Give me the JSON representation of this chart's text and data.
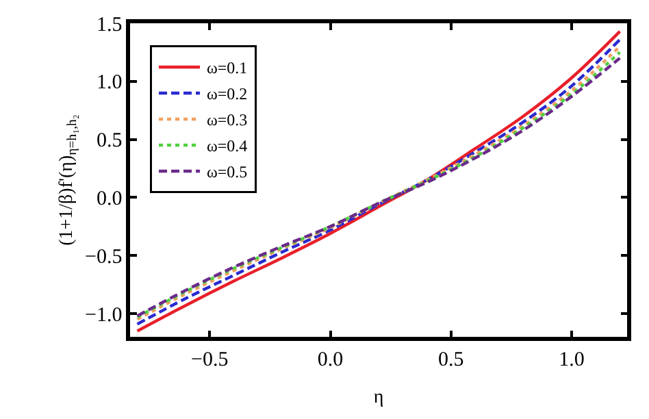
{
  "chart_data": {
    "type": "line",
    "xlabel": "η",
    "ylabel": "(1+1/β)f'(η)$_{η=h₁,h₂}$",
    "x": [
      -0.8,
      -0.6,
      -0.4,
      -0.2,
      0.0,
      0.2,
      0.4,
      0.6,
      0.8,
      1.0,
      1.2
    ],
    "series": [
      {
        "name": "ω=0.1",
        "color": "#e8202a",
        "line_style": "solid",
        "values": [
          -1.15,
          -0.93,
          -0.72,
          -0.52,
          -0.31,
          -0.08,
          0.15,
          0.42,
          0.7,
          1.03,
          1.43
        ]
      },
      {
        "name": "ω=0.2",
        "color": "#2a2ad0",
        "line_style": "dashed",
        "values": [
          -1.09,
          -0.87,
          -0.67,
          -0.47,
          -0.28,
          -0.06,
          0.15,
          0.39,
          0.65,
          0.96,
          1.36
        ]
      },
      {
        "name": "ω=0.3",
        "color": "#f0a060",
        "line_style": "dotted",
        "values": [
          -1.05,
          -0.83,
          -0.63,
          -0.44,
          -0.26,
          -0.05,
          0.15,
          0.37,
          0.62,
          0.92,
          1.3
        ]
      },
      {
        "name": "ω=0.4",
        "color": "#50d040",
        "line_style": "dotted",
        "values": [
          -1.03,
          -0.81,
          -0.61,
          -0.43,
          -0.25,
          -0.05,
          0.14,
          0.35,
          0.6,
          0.89,
          1.25
        ]
      },
      {
        "name": "ω=0.5",
        "color": "#6a2a8a",
        "line_style": "dashed",
        "values": [
          -1.02,
          -0.8,
          -0.6,
          -0.42,
          -0.25,
          -0.05,
          0.13,
          0.34,
          0.58,
          0.87,
          1.2
        ]
      }
    ],
    "xlim": [
      -0.83,
      1.23
    ],
    "ylim": [
      -1.2,
      1.5
    ],
    "xticks": [
      {
        "value": -0.5,
        "label": "−0.5"
      },
      {
        "value": 0.0,
        "label": "0.0"
      },
      {
        "value": 0.5,
        "label": "0.5"
      },
      {
        "value": 1.0,
        "label": "1.0"
      }
    ],
    "yticks": [
      {
        "value": -1.0,
        "label": "−1.0"
      },
      {
        "value": -0.5,
        "label": "−0.5"
      },
      {
        "value": 0.0,
        "label": "0.0"
      },
      {
        "value": 0.5,
        "label": "0.5"
      },
      {
        "value": 1.0,
        "label": "1.0"
      },
      {
        "value": 1.5,
        "label": "1.5"
      }
    ],
    "legend": "top left",
    "marker": "none"
  }
}
